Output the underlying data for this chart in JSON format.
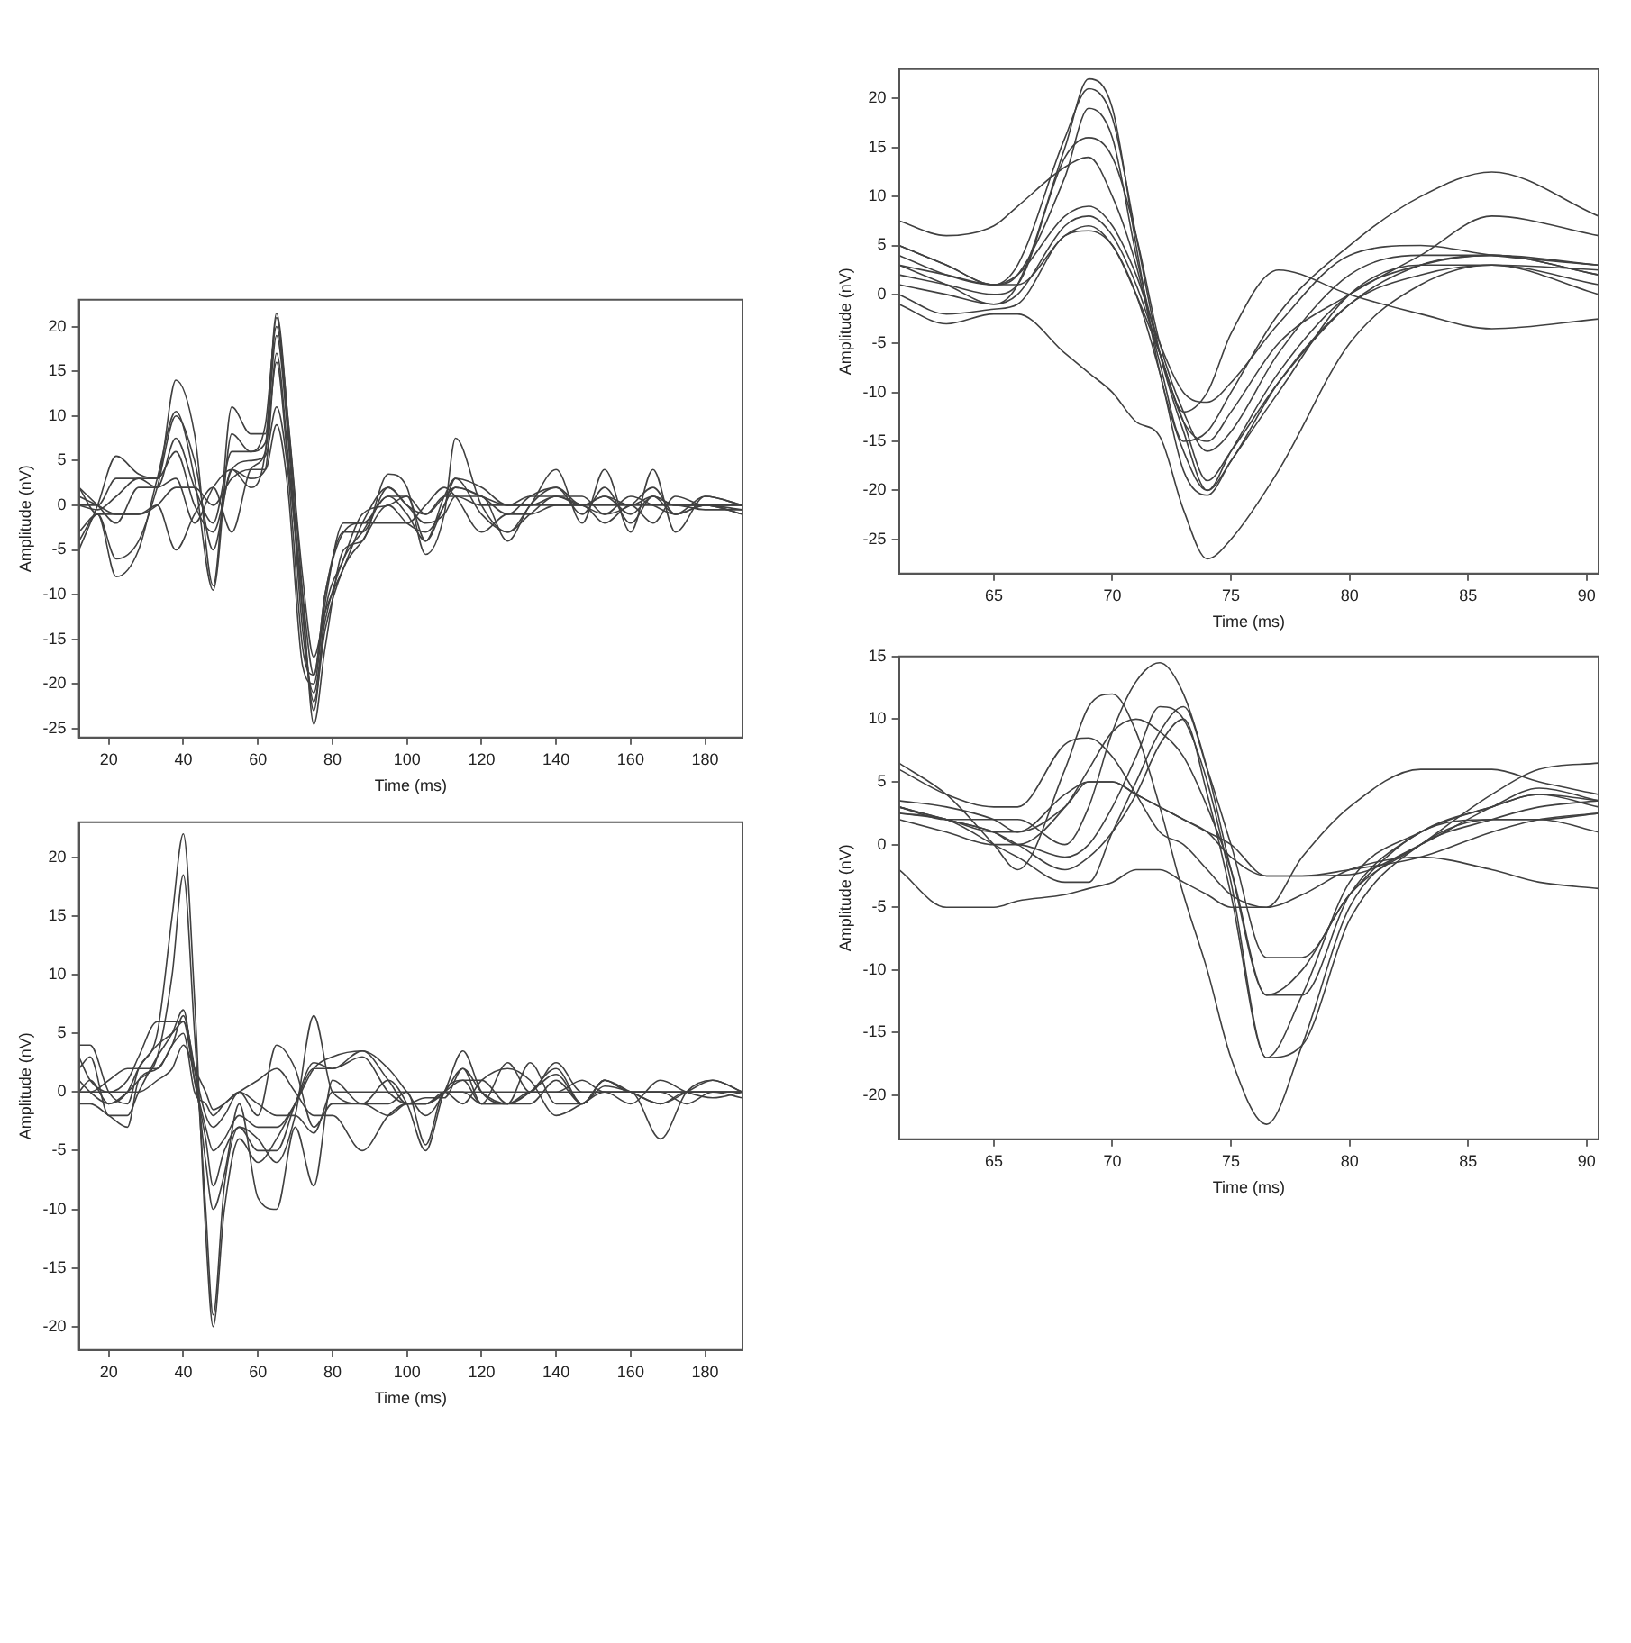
{
  "chart_data": [
    {
      "type": "line",
      "xlabel": "Time (ms)",
      "ylabel": "Amplitude (nV)",
      "xlim": [
        12,
        190
      ],
      "ylim": [
        -26,
        23
      ],
      "xticks": [
        20,
        40,
        60,
        80,
        100,
        120,
        140,
        160,
        180
      ],
      "yticks": [
        -25,
        -20,
        -15,
        -10,
        -5,
        0,
        5,
        10,
        15,
        20
      ],
      "x": [
        12,
        17,
        22,
        28,
        33,
        38,
        43,
        48,
        53,
        58,
        62,
        65,
        68,
        72,
        75,
        78,
        83,
        88,
        95,
        100,
        105,
        110,
        113,
        120,
        127,
        133,
        140,
        147,
        153,
        160,
        166,
        172,
        180,
        190
      ],
      "series": [
        {
          "color": "#404040",
          "values": [
            -5,
            0,
            5.5,
            3.5,
            3,
            14,
            8,
            -9,
            11,
            8,
            8,
            21.5,
            10,
            -10,
            -24.5,
            -16,
            -5,
            -4,
            3.5,
            2,
            -5.5,
            -1,
            7.5,
            0,
            -3,
            0,
            4,
            -2,
            4,
            -3,
            4,
            -3,
            1,
            0
          ]
        },
        {
          "color": "#404040",
          "values": [
            -4,
            -1,
            -8,
            -5,
            3,
            10.5,
            3,
            -9.5,
            8,
            6,
            9,
            20,
            9,
            -12,
            -22,
            -14,
            -7,
            -4,
            0,
            -2,
            -3,
            0,
            3,
            -1,
            -3,
            -1,
            1,
            0,
            -1,
            0,
            2,
            -1,
            0,
            -1
          ]
        },
        {
          "color": "#404040",
          "values": [
            2,
            0,
            -2,
            2,
            2,
            7.5,
            2,
            -2,
            6,
            6,
            7,
            19,
            8,
            -14,
            -21,
            -13,
            -6,
            -3,
            1,
            -1,
            -4,
            0,
            2,
            1,
            -1,
            1,
            2,
            0,
            1,
            -1,
            1,
            0,
            0,
            -1
          ]
        },
        {
          "color": "#404040",
          "values": [
            0,
            0,
            3,
            3,
            3,
            6,
            0,
            -3,
            4,
            5,
            5.5,
            11,
            4,
            -16,
            -19,
            -10,
            -3,
            -3,
            2,
            0,
            -1,
            1,
            2,
            1,
            0,
            0,
            1,
            1,
            -1,
            1,
            0,
            -1,
            0,
            -0.5
          ]
        },
        {
          "color": "#404040",
          "values": [
            1,
            0,
            -1,
            -1,
            0,
            2,
            2,
            0,
            3,
            4,
            4,
            9,
            2,
            -18,
            -20,
            -11,
            -2,
            -2,
            1,
            1,
            -1,
            1,
            1,
            0,
            0,
            0,
            0,
            0,
            0,
            0,
            0,
            0,
            -0.5,
            -0.5
          ]
        },
        {
          "color": "#404040",
          "values": [
            -3,
            -1,
            -6,
            -4,
            2,
            10,
            5,
            -5,
            4,
            2,
            6,
            21,
            10,
            -8,
            -17,
            -12,
            -7,
            -2,
            2,
            0,
            -2,
            -1,
            1,
            1,
            -4,
            0,
            2,
            -1,
            2,
            -2,
            1,
            -1,
            1,
            0
          ]
        },
        {
          "color": "#404040",
          "values": [
            2,
            -1,
            -1,
            -1,
            0,
            -5,
            -1,
            2,
            -3,
            4,
            6,
            16,
            5,
            -10,
            -19,
            -10,
            -3,
            -2,
            -2,
            -2,
            0,
            2,
            1,
            -3,
            -1,
            -1,
            0,
            0,
            -2,
            0,
            -2,
            1,
            0,
            0
          ]
        },
        {
          "color": "#404040",
          "values": [
            0,
            -0.5,
            1,
            3,
            2,
            3,
            -2,
            2,
            4,
            3,
            4,
            17,
            6,
            -12,
            -23,
            -12,
            -6,
            -1,
            0,
            1,
            -4,
            1,
            3,
            2,
            0,
            1,
            1,
            0,
            1,
            0,
            1,
            0,
            0,
            0
          ]
        }
      ]
    },
    {
      "type": "line",
      "xlabel": "Time (ms)",
      "ylabel": "Amplitude (nV)",
      "xlim": [
        12,
        190
      ],
      "ylim": [
        -22,
        23
      ],
      "xticks": [
        20,
        40,
        60,
        80,
        100,
        120,
        140,
        160,
        180
      ],
      "yticks": [
        -20,
        -15,
        -10,
        -5,
        0,
        5,
        10,
        15,
        20
      ],
      "x": [
        12,
        15,
        20,
        25,
        28,
        33,
        37,
        40,
        43,
        46,
        48,
        51,
        55,
        60,
        65,
        70,
        75,
        80,
        88,
        95,
        100,
        105,
        110,
        115,
        120,
        127,
        133,
        140,
        147,
        153,
        160,
        168,
        175,
        182,
        190
      ],
      "series": [
        {
          "color": "#404040",
          "values": [
            4,
            4,
            0,
            -1,
            2,
            5,
            15,
            22,
            8,
            -12,
            -20,
            -10,
            -4,
            -6,
            -4,
            -1,
            2,
            2,
            3.5,
            1,
            -1,
            -0.5,
            -0.5,
            2,
            0,
            -1,
            0,
            1.5,
            -1,
            1,
            0,
            -1,
            0,
            1,
            0
          ]
        },
        {
          "color": "#404040",
          "values": [
            0,
            1,
            -1,
            0,
            1,
            3,
            10,
            18.5,
            5,
            -10,
            -19,
            -8,
            -3,
            -5,
            -5,
            -1,
            2.5,
            2,
            3,
            0,
            -1,
            -1,
            0,
            2,
            -1,
            -1,
            0,
            2,
            -1,
            1,
            0,
            0,
            0,
            0,
            -0.5
          ]
        },
        {
          "color": "#404040",
          "values": [
            2,
            3,
            -2,
            -2,
            0,
            3,
            5,
            7,
            1,
            -4,
            -8,
            -5,
            -3,
            -4,
            -6,
            -2,
            6.5,
            0,
            -1,
            -1,
            0,
            -4.5,
            0,
            -1,
            1,
            2,
            1,
            -2,
            -1,
            0,
            0,
            -4,
            0,
            1,
            0
          ]
        },
        {
          "color": "#404040",
          "values": [
            3,
            1,
            0,
            1,
            3,
            6,
            6,
            6,
            1,
            -3,
            -5,
            -4,
            -2,
            -3,
            -3,
            -1,
            2,
            3,
            3.5,
            2,
            0,
            -2,
            0,
            3.5,
            0,
            -1,
            2.5,
            -1,
            -1,
            1,
            0,
            0,
            -1,
            0,
            0
          ]
        },
        {
          "color": "#404040",
          "values": [
            -1,
            -1,
            -2,
            -3,
            1,
            2,
            4,
            6.5,
            2,
            -2,
            -3,
            -2,
            0,
            -2,
            4,
            2,
            -3,
            -1,
            -1,
            -2,
            -1,
            -1,
            0,
            1,
            -1,
            2.5,
            0,
            2.5,
            0,
            0,
            -1,
            1,
            0,
            -0.5,
            0
          ]
        },
        {
          "color": "#404040",
          "values": [
            0,
            0,
            1,
            2,
            2,
            2,
            4,
            5,
            0,
            -1,
            -2,
            -1,
            0,
            1,
            2,
            0,
            -2,
            -2,
            -5,
            -2,
            -1,
            -1,
            0,
            0,
            -1,
            -1,
            0,
            0,
            1,
            0,
            0,
            0,
            0,
            0,
            0
          ]
        },
        {
          "color": "#404040",
          "values": [
            1,
            0,
            -1,
            0,
            2,
            4,
            5,
            6,
            2,
            -6,
            -10,
            -7,
            -1,
            -9,
            -10,
            -3,
            -8,
            1,
            -1,
            1,
            -1,
            -5,
            0,
            1,
            1,
            -1,
            -1,
            1,
            -1,
            0.5,
            0,
            -1,
            0,
            0,
            0
          ]
        },
        {
          "color": "#404040",
          "values": [
            0,
            0,
            0,
            0,
            0,
            1,
            2,
            4,
            2,
            0,
            -1.5,
            -1,
            0,
            -1,
            -2,
            -2,
            -3.5,
            0,
            0,
            0,
            0,
            0,
            0,
            0,
            0,
            0,
            0,
            0,
            0,
            0,
            0,
            0,
            0,
            0,
            0
          ]
        }
      ]
    },
    {
      "type": "line",
      "xlabel": "Time (ms)",
      "ylabel": "Amplitude (nV)",
      "xlim": [
        61,
        90.5
      ],
      "ylim": [
        -28.5,
        23
      ],
      "xticks": [
        65,
        70,
        75,
        80,
        85,
        90
      ],
      "yticks": [
        -25,
        -20,
        -15,
        -10,
        -5,
        0,
        5,
        10,
        15,
        20
      ],
      "x": [
        61,
        63,
        65,
        66,
        68,
        69,
        70,
        71,
        72,
        73,
        74,
        75,
        77,
        80,
        83,
        86,
        90.5
      ],
      "series": [
        {
          "color": "#404040",
          "values": [
            3,
            1,
            -1,
            1,
            15,
            22,
            19,
            5,
            -8,
            -16,
            -20,
            -16,
            -8,
            0,
            3,
            4,
            2
          ]
        },
        {
          "color": "#404040",
          "values": [
            5,
            3,
            1,
            3,
            16,
            21,
            18,
            6,
            -6,
            -14,
            -20,
            -17,
            -9,
            -1,
            2,
            3,
            1
          ]
        },
        {
          "color": "#404040",
          "values": [
            4,
            2,
            1,
            2,
            12,
            19,
            16,
            4,
            -6,
            -13,
            -19,
            -16,
            -9,
            -1,
            3,
            4,
            2
          ]
        },
        {
          "color": "#404040",
          "values": [
            2,
            1,
            0,
            1,
            14,
            16,
            14,
            6,
            -5,
            -12,
            -16,
            -14,
            -6,
            2,
            4,
            4,
            3
          ]
        },
        {
          "color": "#404040",
          "values": [
            5,
            3,
            1,
            2,
            8,
            9,
            7,
            2,
            -5,
            -10,
            -11,
            -9,
            -3,
            4,
            5,
            4,
            3
          ]
        },
        {
          "color": "#404040",
          "values": [
            7.5,
            6,
            7,
            9,
            13,
            14,
            10,
            3,
            -7,
            -15,
            -14,
            -10,
            -2,
            5,
            10,
            12.5,
            8
          ]
        },
        {
          "color": "#404040",
          "values": [
            0,
            -2,
            -1.5,
            -1,
            6,
            6.5,
            5,
            0,
            -6,
            -12,
            -10,
            -4,
            2.5,
            0,
            -2,
            -3.5,
            -2.5
          ]
        },
        {
          "color": "#404040",
          "values": [
            1,
            0,
            -1,
            0,
            7,
            8,
            6,
            1,
            -6,
            -13,
            -15,
            -12,
            -5,
            0,
            4,
            8,
            6
          ]
        },
        {
          "color": "#404040",
          "values": [
            -1,
            -3,
            -2,
            -2,
            -6,
            -8,
            -10,
            -13,
            -14.5,
            -22,
            -27,
            -25,
            -18,
            -5,
            1,
            3,
            2.5
          ]
        },
        {
          "color": "#404040",
          "values": [
            3,
            2,
            1,
            1,
            6,
            7,
            5,
            0,
            -8,
            -18,
            -20.5,
            -17,
            -10,
            0,
            3,
            3,
            0
          ]
        }
      ]
    },
    {
      "type": "line",
      "xlabel": "Time (ms)",
      "ylabel": "Amplitude (nV)",
      "xlim": [
        61,
        90.5
      ],
      "ylim": [
        -23.5,
        15
      ],
      "xticks": [
        65,
        70,
        75,
        80,
        85,
        90
      ],
      "yticks": [
        -20,
        -15,
        -10,
        -5,
        0,
        5,
        10,
        15
      ],
      "x": [
        61,
        63,
        65,
        66,
        68,
        69,
        70,
        71,
        72,
        73,
        74,
        75,
        76.5,
        78,
        80,
        83,
        86,
        88,
        90.5
      ],
      "series": [
        {
          "color": "#404040",
          "values": [
            6.5,
            4,
            0,
            -2,
            6,
            11,
            12,
            9,
            3,
            -4,
            -10,
            -17,
            -22.3,
            -16,
            -5,
            0,
            2,
            3,
            3.5
          ]
        },
        {
          "color": "#404040",
          "values": [
            3,
            2,
            2,
            2,
            0,
            3,
            9,
            13,
            14.5,
            12,
            6,
            -2,
            -12,
            -10,
            -4,
            0,
            4,
            6,
            6.5
          ]
        },
        {
          "color": "#404040",
          "values": [
            2,
            1,
            0,
            0,
            -1,
            0,
            3,
            7,
            11,
            10,
            5,
            -3,
            -17,
            -12,
            -3,
            1,
            3,
            4,
            3.5
          ]
        },
        {
          "color": "#404040",
          "values": [
            3,
            2,
            1,
            0,
            3,
            6,
            9,
            10,
            9,
            7,
            3,
            -2,
            -12,
            -12,
            -4,
            1,
            3,
            4,
            3
          ]
        },
        {
          "color": "#404040",
          "values": [
            3.5,
            3,
            2,
            1,
            4,
            5,
            5,
            4,
            3,
            2,
            1,
            -1,
            -2.5,
            -2.5,
            -2,
            -1,
            1,
            2,
            2.5
          ]
        },
        {
          "color": "#404040",
          "values": [
            -2,
            -5,
            -5,
            -4.5,
            -4,
            -3.5,
            -3,
            -2,
            -2,
            -3,
            -4,
            -5,
            -5,
            -4,
            -2,
            -1,
            -2,
            -3,
            -3.5
          ]
        },
        {
          "color": "#404040",
          "values": [
            6,
            4,
            3,
            3,
            8,
            8.5,
            7,
            4,
            1,
            0,
            -2,
            -4,
            -5,
            -1,
            3,
            6,
            6,
            5,
            4
          ]
        },
        {
          "color": "#404040",
          "values": [
            2.5,
            2,
            0,
            -1,
            -3,
            -3,
            1,
            5,
            9,
            11,
            6,
            0,
            -9,
            -9,
            -4,
            1,
            2,
            2,
            1
          ]
        },
        {
          "color": "#404040",
          "values": [
            3,
            2,
            1,
            0,
            -2,
            -1,
            1,
            4,
            8,
            10,
            4,
            -4,
            -17,
            -16,
            -6,
            0,
            2,
            2,
            2.5
          ]
        },
        {
          "color": "#404040",
          "values": [
            2.5,
            2,
            1,
            1,
            3,
            5,
            5,
            4,
            3,
            2,
            1,
            0,
            -2.5,
            -2.5,
            -2.4,
            0,
            3,
            4.5,
            3.5
          ]
        }
      ]
    }
  ]
}
